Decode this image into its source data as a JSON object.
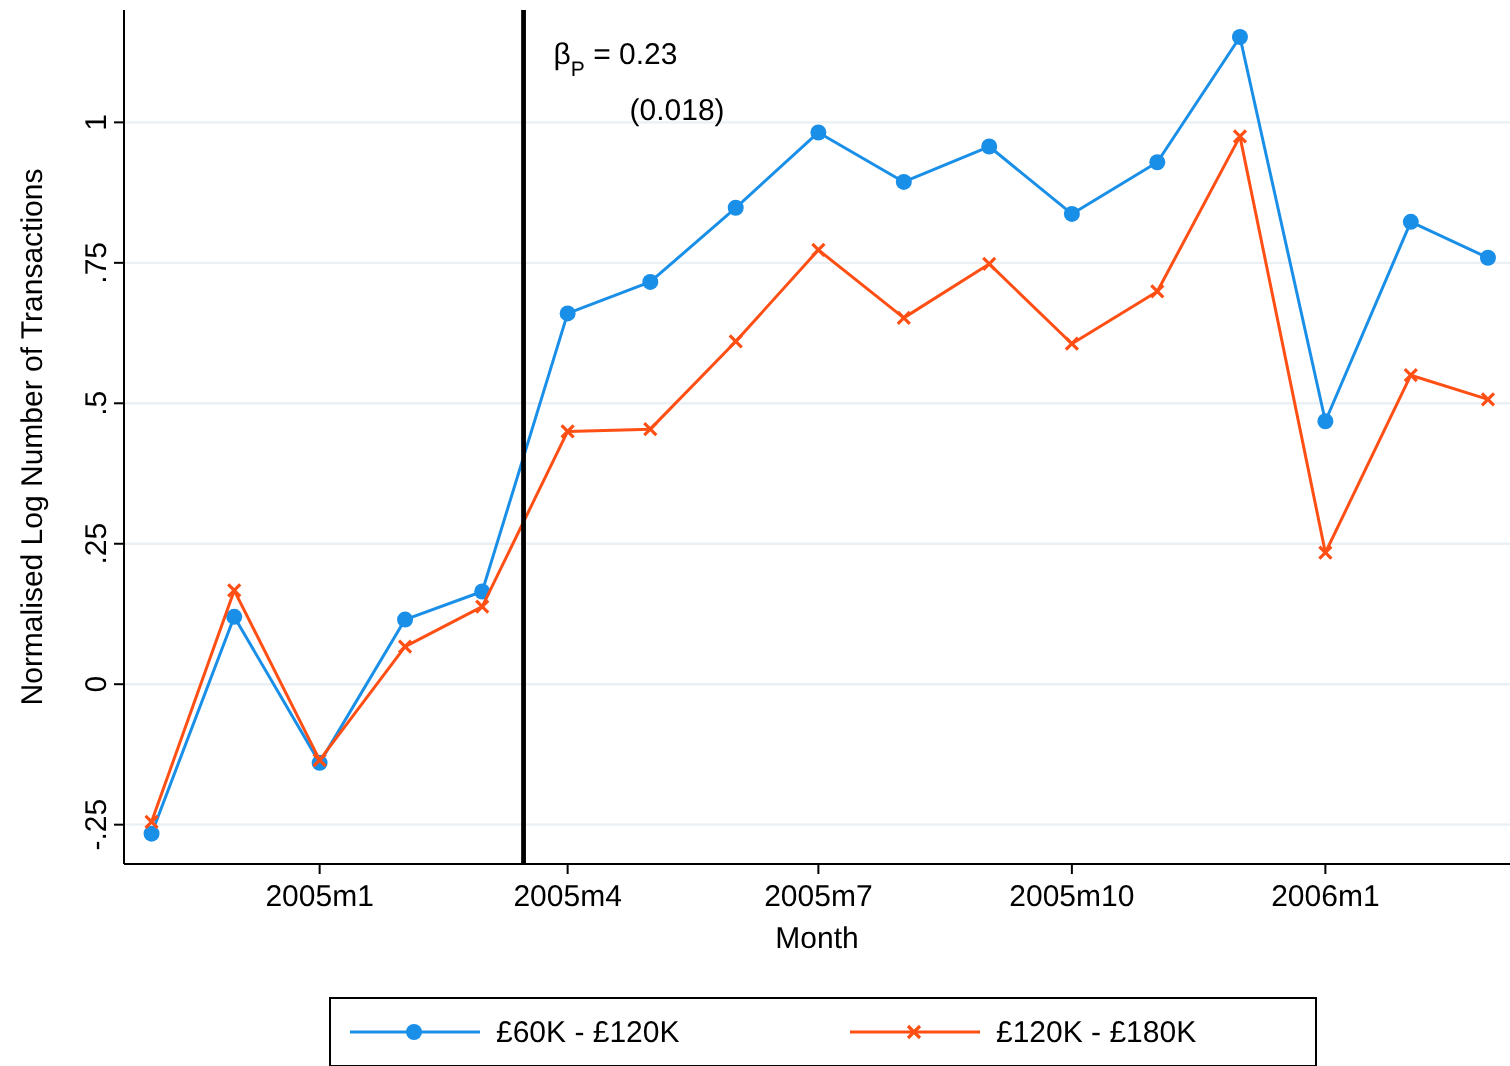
{
  "chart_data": {
    "type": "line",
    "xlabel": "Month",
    "ylabel": "Normalised Log Number of Transactions",
    "x": [
      "2004-11",
      "2004-12",
      "2005-01",
      "2005-02",
      "2005-03",
      "2005-04",
      "2005-05",
      "2005-06",
      "2005-07",
      "2005-08",
      "2005-09",
      "2005-10",
      "2005-11",
      "2005-12",
      "2006-01",
      "2006-02",
      "2006-03"
    ],
    "series": [
      {
        "name": "£60K - £120K",
        "color": "#1a8fe8",
        "marker": "circle",
        "values": [
          -0.266,
          0.12,
          -0.14,
          0.115,
          0.165,
          0.66,
          0.716,
          0.848,
          0.982,
          0.894,
          0.957,
          0.837,
          0.929,
          1.152,
          0.468,
          0.823,
          0.759
        ]
      },
      {
        "name": "£120K - £180K",
        "color": "#ff4f14",
        "marker": "cross",
        "values": [
          -0.245,
          0.167,
          -0.135,
          0.067,
          0.138,
          0.45,
          0.454,
          0.61,
          0.773,
          0.652,
          0.748,
          0.606,
          0.699,
          0.975,
          0.234,
          0.55,
          0.507
        ]
      }
    ],
    "xlim": [
      "2004-10-22",
      "2006-03-09"
    ],
    "ylim": [
      -0.32,
      1.2
    ],
    "xticks": [
      {
        "value": "2005-01",
        "label": "2005m1"
      },
      {
        "value": "2005-04",
        "label": "2005m4"
      },
      {
        "value": "2005-07",
        "label": "2005m7"
      },
      {
        "value": "2005-10",
        "label": "2005m10"
      },
      {
        "value": "2006-01",
        "label": "2006m1"
      }
    ],
    "yticks": [
      {
        "value": -0.25,
        "label": "-.25"
      },
      0,
      {
        "value": 0.25,
        "label": ".25"
      },
      {
        "value": 0.5,
        "label": ".5"
      },
      {
        "value": 0.75,
        "label": ".75"
      },
      1
    ],
    "ref_lines": [
      {
        "axis": "x",
        "value": "2005-03-16",
        "color": "#000000"
      }
    ],
    "annotations": [
      "β$_{P}$ =  0.23",
      "(0.018)"
    ],
    "grid": "y",
    "legend": "bottom",
    "line_style": "solid"
  }
}
